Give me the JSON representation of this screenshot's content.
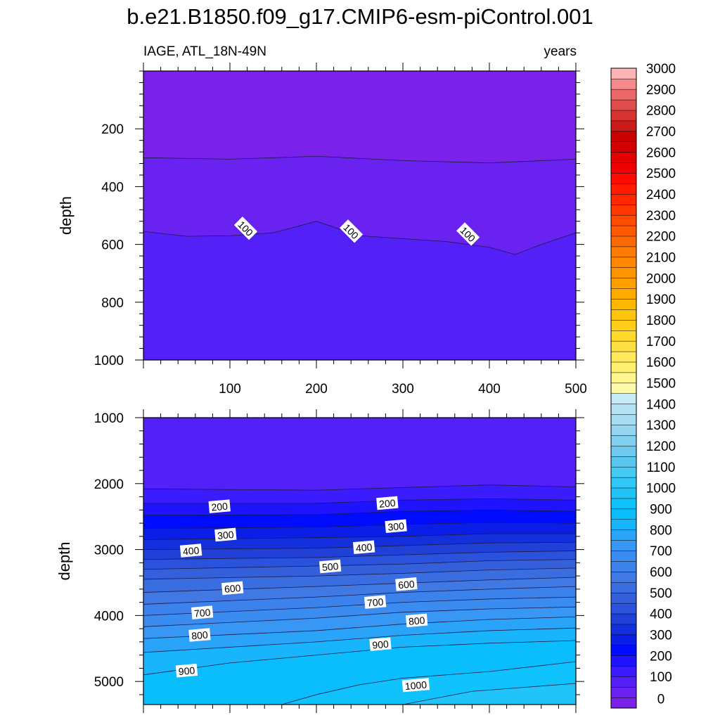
{
  "title": "b.e21.B1850.f09_g17.CMIP6-esm-piControl.001",
  "subtitle_left": "IAGE, ATL_18N-49N",
  "subtitle_right": "years",
  "chart_data": [
    {
      "type": "contour",
      "panel": "upper",
      "ylabel": "depth",
      "xlim": [
        0,
        500
      ],
      "ylim": [
        1000,
        0
      ],
      "y_ticks": [
        200,
        400,
        600,
        800,
        1000
      ],
      "x_ticks": [
        100,
        200,
        300,
        400,
        500
      ],
      "contour_lines": [
        {
          "level": 50,
          "depth_at_x": [
            [
              0,
              300
            ],
            [
              100,
              305
            ],
            [
              200,
              295
            ],
            [
              300,
              310
            ],
            [
              400,
              318
            ],
            [
              500,
              305
            ]
          ]
        },
        {
          "level": 100,
          "depth_at_x": [
            [
              0,
              555
            ],
            [
              50,
              572
            ],
            [
              100,
              570
            ],
            [
              150,
              560
            ],
            [
              200,
              520
            ],
            [
              250,
              570
            ],
            [
              300,
              580
            ],
            [
              350,
              590
            ],
            [
              400,
              610
            ],
            [
              430,
              635
            ],
            [
              460,
              600
            ],
            [
              500,
              560
            ]
          ]
        }
      ],
      "contour_labels": [
        {
          "text": "100",
          "x": 118,
          "depth": 545
        },
        {
          "text": "100",
          "x": 240,
          "depth": 555
        },
        {
          "text": "100",
          "x": 375,
          "depth": 565
        }
      ]
    },
    {
      "type": "contour",
      "panel": "lower",
      "ylabel": "depth",
      "xlim": [
        0,
        500
      ],
      "ylim": [
        1000,
        5350
      ],
      "y_ticks": [
        1000,
        2000,
        3000,
        4000,
        5000
      ],
      "contour_lines": [
        {
          "level": 150,
          "depth_at_x": [
            [
              0,
              2080
            ],
            [
              200,
              2100
            ],
            [
              300,
              2060
            ],
            [
              400,
              2020
            ],
            [
              500,
              2050
            ]
          ]
        },
        {
          "level": 200,
          "depth_at_x": [
            [
              0,
              2300
            ],
            [
              200,
              2300
            ],
            [
              300,
              2250
            ],
            [
              400,
              2230
            ],
            [
              500,
              2250
            ]
          ]
        },
        {
          "level": 250,
          "depth_at_x": [
            [
              0,
              2480
            ],
            [
              200,
              2470
            ],
            [
              300,
              2420
            ],
            [
              400,
              2400
            ],
            [
              500,
              2420
            ]
          ]
        },
        {
          "level": 300,
          "depth_at_x": [
            [
              0,
              2680
            ],
            [
              200,
              2660
            ],
            [
              300,
              2620
            ],
            [
              400,
              2590
            ],
            [
              500,
              2600
            ]
          ]
        },
        {
          "level": 350,
          "depth_at_x": [
            [
              0,
              2850
            ],
            [
              200,
              2820
            ],
            [
              300,
              2800
            ],
            [
              400,
              2760
            ],
            [
              500,
              2760
            ]
          ]
        },
        {
          "level": 400,
          "depth_at_x": [
            [
              0,
              3000
            ],
            [
              200,
              2980
            ],
            [
              300,
              2940
            ],
            [
              400,
              2900
            ],
            [
              500,
              2890
            ]
          ]
        },
        {
          "level": 450,
          "depth_at_x": [
            [
              0,
              3150
            ],
            [
              200,
              3120
            ],
            [
              300,
              3080
            ],
            [
              400,
              3040
            ],
            [
              500,
              3020
            ]
          ]
        },
        {
          "level": 500,
          "depth_at_x": [
            [
              0,
              3300
            ],
            [
              200,
              3250
            ],
            [
              300,
              3220
            ],
            [
              400,
              3170
            ],
            [
              500,
              3150
            ]
          ]
        },
        {
          "level": 550,
          "depth_at_x": [
            [
              0,
              3450
            ],
            [
              200,
              3400
            ],
            [
              300,
              3360
            ],
            [
              400,
              3310
            ],
            [
              500,
              3280
            ]
          ]
        },
        {
          "level": 600,
          "depth_at_x": [
            [
              0,
              3650
            ],
            [
              200,
              3560
            ],
            [
              300,
              3510
            ],
            [
              400,
              3460
            ],
            [
              500,
              3420
            ]
          ]
        },
        {
          "level": 650,
          "depth_at_x": [
            [
              0,
              3830
            ],
            [
              200,
              3720
            ],
            [
              300,
              3650
            ],
            [
              400,
              3600
            ],
            [
              500,
              3560
            ]
          ]
        },
        {
          "level": 700,
          "depth_at_x": [
            [
              0,
              4000
            ],
            [
              200,
              3880
            ],
            [
              300,
              3800
            ],
            [
              400,
              3750
            ],
            [
              500,
              3720
            ]
          ]
        },
        {
          "level": 750,
          "depth_at_x": [
            [
              0,
              4170
            ],
            [
              200,
              4040
            ],
            [
              300,
              3950
            ],
            [
              400,
              3900
            ],
            [
              500,
              3870
            ]
          ]
        },
        {
          "level": 800,
          "depth_at_x": [
            [
              0,
              4350
            ],
            [
              200,
              4230
            ],
            [
              300,
              4130
            ],
            [
              400,
              4060
            ],
            [
              500,
              4020
            ]
          ]
        },
        {
          "level": 850,
          "depth_at_x": [
            [
              0,
              4560
            ],
            [
              200,
              4400
            ],
            [
              300,
              4300
            ],
            [
              400,
              4230
            ],
            [
              500,
              4190
            ]
          ]
        },
        {
          "level": 900,
          "depth_at_x": [
            [
              0,
              4900
            ],
            [
              100,
              4720
            ],
            [
              200,
              4600
            ],
            [
              300,
              4480
            ],
            [
              400,
              4420
            ],
            [
              500,
              4380
            ]
          ]
        },
        {
          "level": 950,
          "depth_at_x": [
            [
              160,
              5350
            ],
            [
              200,
              5200
            ],
            [
              250,
              5050
            ],
            [
              300,
              4950
            ],
            [
              400,
              4850
            ],
            [
              500,
              4700
            ]
          ]
        },
        {
          "level": 1000,
          "depth_at_x": [
            [
              300,
              5350
            ],
            [
              380,
              5150
            ],
            [
              500,
              5030
            ]
          ]
        }
      ],
      "contour_labels": [
        {
          "text": "200",
          "x": 88,
          "depth": 2350
        },
        {
          "text": "200",
          "x": 282,
          "depth": 2300
        },
        {
          "text": "300",
          "x": 95,
          "depth": 2780
        },
        {
          "text": "300",
          "x": 292,
          "depth": 2650
        },
        {
          "text": "400",
          "x": 55,
          "depth": 3020
        },
        {
          "text": "400",
          "x": 255,
          "depth": 2970
        },
        {
          "text": "500",
          "x": 216,
          "depth": 3260
        },
        {
          "text": "600",
          "x": 103,
          "depth": 3590
        },
        {
          "text": "600",
          "x": 304,
          "depth": 3530
        },
        {
          "text": "700",
          "x": 68,
          "depth": 3960
        },
        {
          "text": "700",
          "x": 268,
          "depth": 3800
        },
        {
          "text": "800",
          "x": 65,
          "depth": 4300
        },
        {
          "text": "800",
          "x": 316,
          "depth": 4080
        },
        {
          "text": "900",
          "x": 50,
          "depth": 4840
        },
        {
          "text": "900",
          "x": 274,
          "depth": 4440
        },
        {
          "text": "1000",
          "x": 315,
          "depth": 5060
        }
      ]
    }
  ],
  "colorbar": {
    "labels": [
      "0",
      "100",
      "200",
      "300",
      "400",
      "500",
      "600",
      "700",
      "800",
      "900",
      "1000",
      "1100",
      "1200",
      "1300",
      "1400",
      "1500",
      "1600",
      "1700",
      "1800",
      "1900",
      "2000",
      "2100",
      "2200",
      "2300",
      "2400",
      "2500",
      "2600",
      "2700",
      "2800",
      "2900",
      "3000"
    ],
    "colors": [
      "#7b22ea",
      "#6a22f0",
      "#5420f8",
      "#3a1cff",
      "#1e14ff",
      "#000cff",
      "#0a1ee8",
      "#1430dc",
      "#2040d8",
      "#2a52dc",
      "#3460dc",
      "#3a6ee0",
      "#4078e4",
      "#3c82ec",
      "#3a8cf0",
      "#3896f4",
      "#2aa4f8",
      "#18b4fc",
      "#0abefe",
      "#10c2fc",
      "#20c4f8",
      "#30c8f6",
      "#46ccf4",
      "#5ac6f0",
      "#6ecaf0",
      "#82d0f0",
      "#94d6f2",
      "#a6dcf2",
      "#b6e2f4",
      "#c6eaf6",
      "#fffaa8",
      "#fff68e",
      "#fff070",
      "#ffe85a",
      "#ffe042",
      "#ffd82c",
      "#ffce18",
      "#ffc40c",
      "#ffb800",
      "#ffac00",
      "#ffa000",
      "#ff9400",
      "#ff8800",
      "#ff7a00",
      "#ff6a00",
      "#ff5a00",
      "#ff4a00",
      "#ff3800",
      "#ff2800",
      "#ff1a00",
      "#ff0a00",
      "#f00000",
      "#e20000",
      "#d40000",
      "#c80000",
      "#cc1a1a",
      "#d63232",
      "#e04c4c",
      "#ea6868",
      "#f48a8a",
      "#fcb4b4"
    ]
  }
}
